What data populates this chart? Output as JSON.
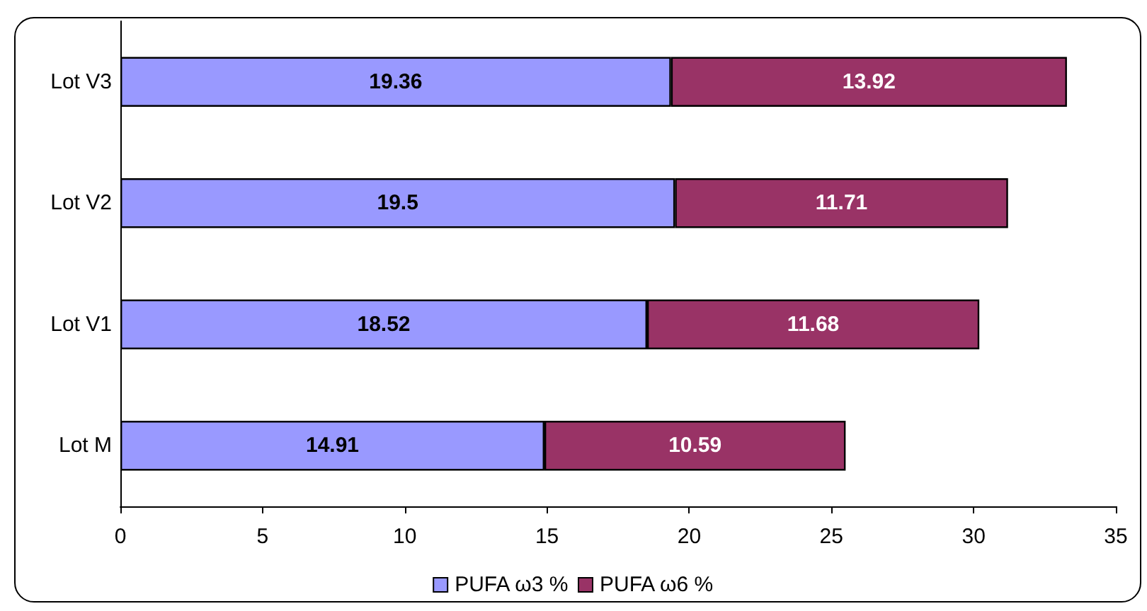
{
  "chart_data": {
    "type": "bar",
    "orientation": "horizontal",
    "stacked": true,
    "categories": [
      "Lot V3",
      "Lot V2",
      "Lot V1",
      "Lot M"
    ],
    "series": [
      {
        "name": "PUFA ω3 %",
        "color": "#9999ff",
        "values": [
          19.36,
          19.5,
          18.52,
          14.91
        ]
      },
      {
        "name": "PUFA ω6 %",
        "color": "#993366",
        "values": [
          13.92,
          11.71,
          11.68,
          10.59
        ]
      }
    ],
    "xlim": [
      0,
      35
    ],
    "xticks": [
      0,
      5,
      10,
      15,
      20,
      25,
      30,
      35
    ],
    "data_labels": true,
    "legend": "bottom",
    "grid": false
  }
}
